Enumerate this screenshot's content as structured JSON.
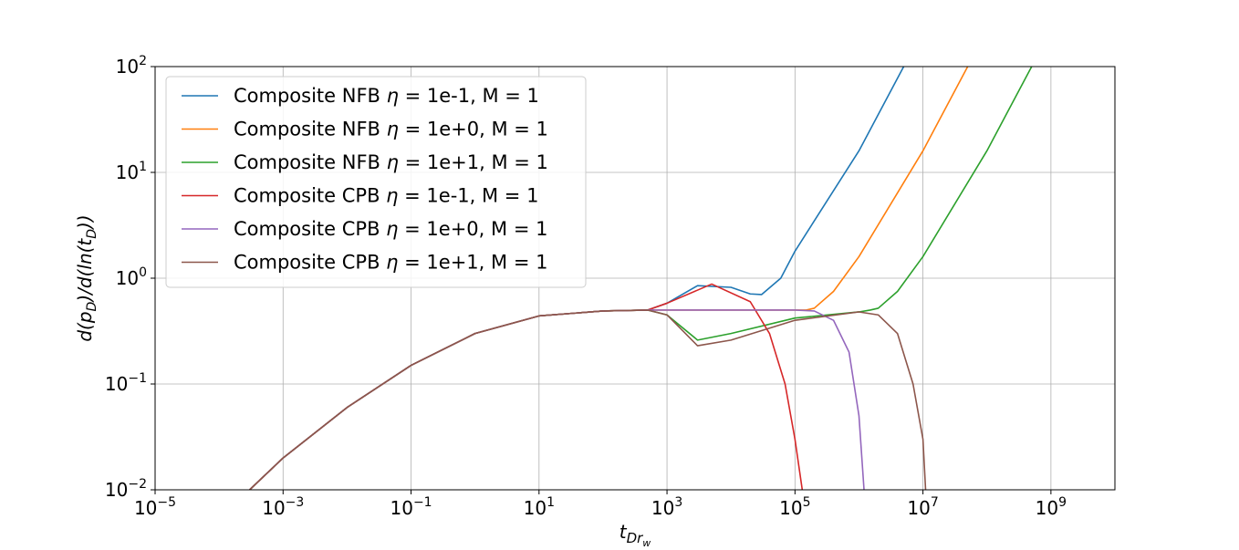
{
  "chart_data": {
    "type": "line",
    "title": "",
    "xlabel": "t_{Dr_w}",
    "ylabel": "d(p_D)/d(ln(t_D))",
    "xscale": "log",
    "yscale": "log",
    "xlim": [
      1e-05,
      10000000000.0
    ],
    "ylim": [
      0.01,
      100
    ],
    "grid": true,
    "legend_position": "top-left",
    "x_ticks": [
      {
        "base": "10",
        "exp": "−5"
      },
      {
        "base": "10",
        "exp": "−3"
      },
      {
        "base": "10",
        "exp": "−1"
      },
      {
        "base": "10",
        "exp": "1"
      },
      {
        "base": "10",
        "exp": "3"
      },
      {
        "base": "10",
        "exp": "5"
      },
      {
        "base": "10",
        "exp": "7"
      },
      {
        "base": "10",
        "exp": "9"
      }
    ],
    "y_ticks": [
      {
        "base": "10",
        "exp": "−2"
      },
      {
        "base": "10",
        "exp": "−1"
      },
      {
        "base": "10",
        "exp": "0"
      },
      {
        "base": "10",
        "exp": "1"
      },
      {
        "base": "10",
        "exp": "2"
      }
    ],
    "series": [
      {
        "name": "Composite NFB η = 1e-1, M = 1",
        "color": "#1f77b4",
        "x": [
          0.0003,
          0.001,
          0.01,
          0.1,
          1,
          10,
          100,
          500,
          1000,
          3000,
          10000,
          20000,
          30000,
          60000,
          100000,
          1000000,
          5000000
        ],
        "y": [
          0.01,
          0.02,
          0.06,
          0.15,
          0.3,
          0.44,
          0.49,
          0.5,
          0.58,
          0.85,
          0.82,
          0.71,
          0.7,
          1.0,
          1.8,
          16,
          100
        ]
      },
      {
        "name": "Composite NFB η = 1e+0, M = 1",
        "color": "#ff7f0e",
        "x": [
          0.0003,
          0.001,
          0.01,
          0.1,
          1,
          10,
          100,
          500,
          1000,
          10000,
          100000,
          150000,
          200000,
          400000,
          1000000,
          10000000,
          50000000
        ],
        "y": [
          0.01,
          0.02,
          0.06,
          0.15,
          0.3,
          0.44,
          0.49,
          0.5,
          0.5,
          0.5,
          0.5,
          0.5,
          0.52,
          0.75,
          1.6,
          16,
          100
        ]
      },
      {
        "name": "Composite NFB η = 1e+1, M = 1",
        "color": "#2ca02c",
        "x": [
          0.0003,
          0.001,
          0.01,
          0.1,
          1,
          10,
          100,
          500,
          1000,
          3000,
          10000,
          100000,
          1000000,
          1500000,
          2000000,
          4000000,
          10000000,
          100000000,
          500000000
        ],
        "y": [
          0.01,
          0.02,
          0.06,
          0.15,
          0.3,
          0.44,
          0.49,
          0.5,
          0.45,
          0.26,
          0.3,
          0.42,
          0.48,
          0.5,
          0.52,
          0.75,
          1.6,
          16,
          100
        ]
      },
      {
        "name": "Composite CPB η = 1e-1, M = 1",
        "color": "#d62728",
        "x": [
          0.0003,
          0.001,
          0.01,
          0.1,
          1,
          10,
          100,
          500,
          1000,
          5000,
          20000,
          40000,
          70000,
          100000,
          130000
        ],
        "y": [
          0.01,
          0.02,
          0.06,
          0.15,
          0.3,
          0.44,
          0.49,
          0.5,
          0.58,
          0.88,
          0.6,
          0.3,
          0.1,
          0.03,
          0.01
        ]
      },
      {
        "name": "Composite CPB η = 1e+0, M = 1",
        "color": "#9467bd",
        "x": [
          0.0003,
          0.001,
          0.01,
          0.1,
          1,
          10,
          100,
          500,
          1000,
          10000,
          100000,
          200000,
          400000,
          700000,
          1000000,
          1200000
        ],
        "y": [
          0.01,
          0.02,
          0.06,
          0.15,
          0.3,
          0.44,
          0.49,
          0.5,
          0.5,
          0.5,
          0.5,
          0.49,
          0.4,
          0.2,
          0.05,
          0.01
        ]
      },
      {
        "name": "Composite CPB η = 1e+1, M = 1",
        "color": "#8c564b",
        "x": [
          0.0003,
          0.001,
          0.01,
          0.1,
          1,
          10,
          100,
          500,
          1000,
          3000,
          10000,
          100000,
          1000000,
          2000000,
          4000000,
          7000000,
          10000000,
          11000000
        ],
        "y": [
          0.01,
          0.02,
          0.06,
          0.15,
          0.3,
          0.44,
          0.49,
          0.5,
          0.45,
          0.23,
          0.26,
          0.4,
          0.48,
          0.45,
          0.3,
          0.1,
          0.03,
          0.01
        ]
      }
    ]
  }
}
